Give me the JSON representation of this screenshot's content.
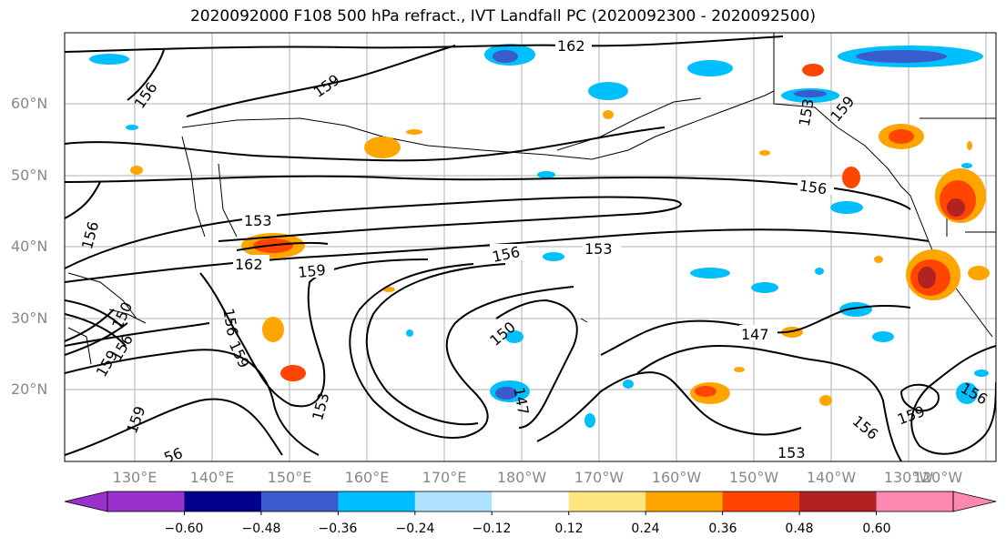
{
  "title": "2020092000 F108 500 hPa refract., IVT Landfall PC (2020092300 - 2020092500)",
  "lat_labels": [
    "60°N",
    "50°N",
    "40°N",
    "30°N",
    "20°N"
  ],
  "lon_labels": [
    "130°E",
    "140°E",
    "150°E",
    "160°E",
    "170°E",
    "180°W",
    "170°W",
    "160°W",
    "150°W",
    "140°W",
    "130°W",
    "120°W"
  ],
  "colorbar": {
    "colors": [
      "#9932cc",
      "#00008b",
      "#3a5bcc",
      "#00bfff",
      "#aee2ff",
      "#ffffff",
      "#ffe680",
      "#ffa500",
      "#ff4500",
      "#b22222",
      "#ff88b0"
    ],
    "tick_labels": [
      "−0.60",
      "−0.48",
      "−0.36",
      "−0.24",
      "−0.12",
      "0.12",
      "0.24",
      "0.36",
      "0.48",
      "0.60"
    ]
  },
  "contour_labels": [
    "162",
    "156",
    "159",
    "153",
    "156",
    "162",
    "159",
    "156",
    "153",
    "150",
    "147",
    "147",
    "156",
    "156",
    "159",
    "153",
    "153",
    "156",
    "159",
    "156",
    "153",
    "159",
    "159",
    "156",
    "159",
    "150",
    "56"
  ]
}
